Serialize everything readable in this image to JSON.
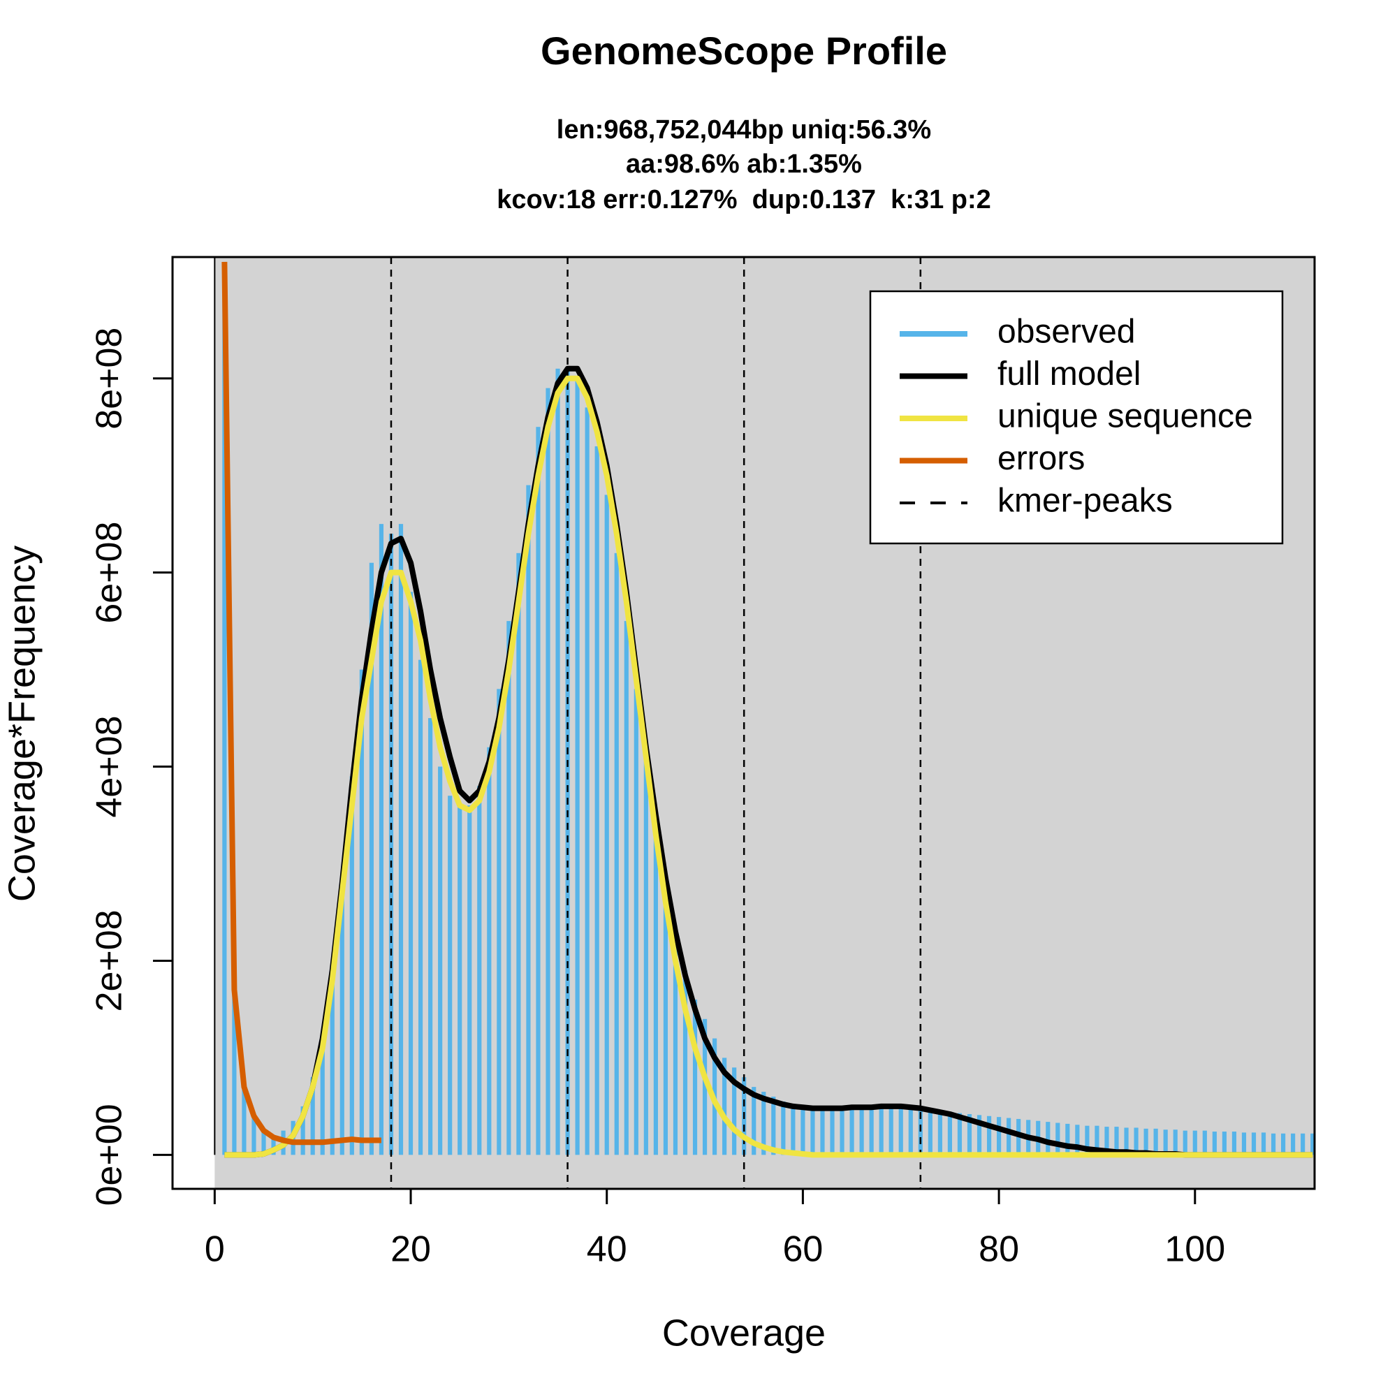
{
  "chart_data": {
    "type": "line",
    "title": "GenomeScope Profile",
    "subtitle": [
      "len:968,752,044bp uniq:56.3%",
      "aa:98.6% ab:1.35%",
      "kcov:18 err:0.127%  dup:0.137  k:31 p:2"
    ],
    "xlabel": "Coverage",
    "ylabel": "Coverage*Frequency",
    "xlim": [
      -4.3,
      112.2
    ],
    "ylim": [
      -35000000.0,
      925000000.0
    ],
    "xticks": [
      0,
      20,
      40,
      60,
      80,
      100
    ],
    "yticks": [
      {
        "value": 0,
        "label": "0e+00"
      },
      {
        "value": 200000000.0,
        "label": "2e+08"
      },
      {
        "value": 400000000.0,
        "label": "4e+08"
      },
      {
        "value": 600000000.0,
        "label": "6e+08"
      },
      {
        "value": 800000000.0,
        "label": "8e+08"
      }
    ],
    "legend": "top-right",
    "x": [
      1,
      2,
      3,
      4,
      5,
      6,
      7,
      8,
      9,
      10,
      11,
      12,
      13,
      14,
      15,
      16,
      17,
      18,
      19,
      20,
      21,
      22,
      23,
      24,
      25,
      26,
      27,
      28,
      29,
      30,
      31,
      32,
      33,
      34,
      35,
      36,
      37,
      38,
      39,
      40,
      41,
      42,
      43,
      44,
      45,
      46,
      47,
      48,
      49,
      50,
      51,
      52,
      53,
      54,
      55,
      56,
      57,
      58,
      59,
      60,
      61,
      62,
      63,
      64,
      65,
      66,
      67,
      68,
      69,
      70,
      71,
      72,
      73,
      74,
      75,
      76,
      77,
      78,
      79,
      80,
      81,
      82,
      83,
      84,
      85,
      86,
      87,
      88,
      89,
      90,
      91,
      92,
      93,
      94,
      95,
      96,
      97,
      98,
      99,
      100,
      101,
      102,
      103,
      104,
      105,
      106,
      107,
      108,
      109,
      110,
      111,
      112
    ],
    "series": [
      {
        "name": "observed",
        "kind": "bar",
        "color": "#56B4E9",
        "values": [
          920000000.0,
          170000000.0,
          70000000.0,
          40000000.0,
          25000000.0,
          20000000.0,
          25000000.0,
          35000000.0,
          50000000.0,
          80000000.0,
          120000000.0,
          190000000.0,
          280000000.0,
          390000000.0,
          500000000.0,
          610000000.0,
          650000000.0,
          640000000.0,
          650000000.0,
          580000000.0,
          510000000.0,
          450000000.0,
          400000000.0,
          370000000.0,
          360000000.0,
          360000000.0,
          380000000.0,
          420000000.0,
          480000000.0,
          550000000.0,
          620000000.0,
          690000000.0,
          750000000.0,
          790000000.0,
          810000000.0,
          810000000.0,
          800000000.0,
          770000000.0,
          730000000.0,
          680000000.0,
          620000000.0,
          550000000.0,
          480000000.0,
          410000000.0,
          340000000.0,
          280000000.0,
          230000000.0,
          190000000.0,
          160000000.0,
          140000000.0,
          120000000.0,
          100000000.0,
          90000000.0,
          80000000.0,
          70000000.0,
          65000000.0,
          60000000.0,
          55000000.0,
          52000000.0,
          50000000.0,
          50000000.0,
          50000000.0,
          50000000.0,
          50000000.0,
          50000000.0,
          50000000.0,
          50000000.0,
          50000000.0,
          50000000.0,
          50000000.0,
          50000000.0,
          48000000.0,
          46000000.0,
          45000000.0,
          44000000.0,
          43000000.0,
          42000000.0,
          41000000.0,
          40000000.0,
          39000000.0,
          38000000.0,
          37000000.0,
          36000000.0,
          35000000.0,
          34000000.0,
          33000000.0,
          32000000.0,
          31000000.0,
          30000000.0,
          30000000.0,
          29000000.0,
          29000000.0,
          28000000.0,
          28000000.0,
          27000000.0,
          27000000.0,
          26000000.0,
          26000000.0,
          25000000.0,
          25000000.0,
          25000000.0,
          24000000.0,
          24000000.0,
          24000000.0,
          23000000.0,
          23000000.0,
          23000000.0,
          22000000.0,
          22000000.0,
          22000000.0,
          22000000.0,
          22000000.0
        ]
      },
      {
        "name": "full model",
        "kind": "line",
        "color": "#000000",
        "values": [
          0,
          0,
          0,
          0,
          1000000.0,
          5000000.0,
          10000000.0,
          20000000.0,
          40000000.0,
          70000000.0,
          120000000.0,
          190000000.0,
          280000000.0,
          380000000.0,
          470000000.0,
          540000000.0,
          600000000.0,
          630000000.0,
          635000000.0,
          610000000.0,
          560000000.0,
          500000000.0,
          450000000.0,
          410000000.0,
          375000000.0,
          365000000.0,
          375000000.0,
          405000000.0,
          450000000.0,
          510000000.0,
          580000000.0,
          650000000.0,
          710000000.0,
          760000000.0,
          795000000.0,
          810000000.0,
          810000000.0,
          790000000.0,
          755000000.0,
          710000000.0,
          650000000.0,
          580000000.0,
          500000000.0,
          420000000.0,
          350000000.0,
          285000000.0,
          230000000.0,
          185000000.0,
          150000000.0,
          120000000.0,
          100000000.0,
          85000000.0,
          75000000.0,
          68000000.0,
          62000000.0,
          58000000.0,
          55000000.0,
          52000000.0,
          50000000.0,
          49000000.0,
          48000000.0,
          48000000.0,
          48000000.0,
          48000000.0,
          49000000.0,
          49000000.0,
          49000000.0,
          50000000.0,
          50000000.0,
          50000000.0,
          49000000.0,
          48000000.0,
          46000000.0,
          44000000.0,
          42000000.0,
          39000000.0,
          36000000.0,
          33000000.0,
          30000000.0,
          27000000.0,
          24000000.0,
          21000000.0,
          18000000.0,
          16000000.0,
          13000000.0,
          11000000.0,
          9000000.0,
          8000000.0,
          6000000.0,
          5000000.0,
          4000000.0,
          3000000.0,
          3000000.0,
          2000000.0,
          2000000.0,
          1000000.0,
          1000000.0,
          1000000.0,
          0,
          0,
          0,
          0,
          0,
          0,
          0,
          0,
          0,
          0,
          0,
          0,
          0,
          0
        ]
      },
      {
        "name": "unique sequence",
        "kind": "line",
        "color": "#F0E442",
        "values": [
          0,
          0,
          0,
          0,
          1000000.0,
          5000000.0,
          10000000.0,
          20000000.0,
          40000000.0,
          70000000.0,
          110000000.0,
          180000000.0,
          270000000.0,
          360000000.0,
          450000000.0,
          510000000.0,
          570000000.0,
          600000000.0,
          600000000.0,
          570000000.0,
          530000000.0,
          470000000.0,
          420000000.0,
          385000000.0,
          360000000.0,
          355000000.0,
          365000000.0,
          395000000.0,
          440000000.0,
          500000000.0,
          570000000.0,
          640000000.0,
          700000000.0,
          750000000.0,
          785000000.0,
          800000000.0,
          800000000.0,
          780000000.0,
          745000000.0,
          700000000.0,
          640000000.0,
          570000000.0,
          490000000.0,
          410000000.0,
          330000000.0,
          260000000.0,
          200000000.0,
          150000000.0,
          110000000.0,
          80000000.0,
          55000000.0,
          38000000.0,
          26000000.0,
          18000000.0,
          12000000.0,
          8000000.0,
          5000000.0,
          3000000.0,
          2000000.0,
          1000000.0,
          0,
          0,
          0,
          0,
          0,
          0,
          0,
          0,
          0,
          0,
          0,
          0,
          0,
          0,
          0,
          0,
          0,
          0,
          0,
          0,
          0,
          0,
          0,
          0,
          0,
          0,
          0,
          0,
          0,
          0,
          0,
          0,
          0,
          0,
          0,
          0,
          0,
          0,
          0,
          0,
          0,
          0,
          0,
          0,
          0,
          0,
          0,
          0,
          0,
          0,
          0,
          0
        ]
      },
      {
        "name": "errors",
        "kind": "line",
        "color": "#D55E00",
        "x": [
          1,
          2,
          3,
          4,
          5,
          6,
          7,
          8,
          9,
          10,
          11,
          12,
          13,
          14,
          15,
          16,
          17
        ],
        "values": [
          920000000.0,
          170000000.0,
          70000000.0,
          40000000.0,
          25000000.0,
          18000000.0,
          15000000.0,
          13000000.0,
          13000000.0,
          13000000.0,
          13000000.0,
          14000000.0,
          15000000.0,
          16000000.0,
          15000000.0,
          15000000.0,
          15000000.0
        ]
      }
    ],
    "vlines": {
      "name": "kmer-peaks",
      "color": "#000000",
      "values": [
        18,
        36,
        54,
        72
      ]
    }
  }
}
